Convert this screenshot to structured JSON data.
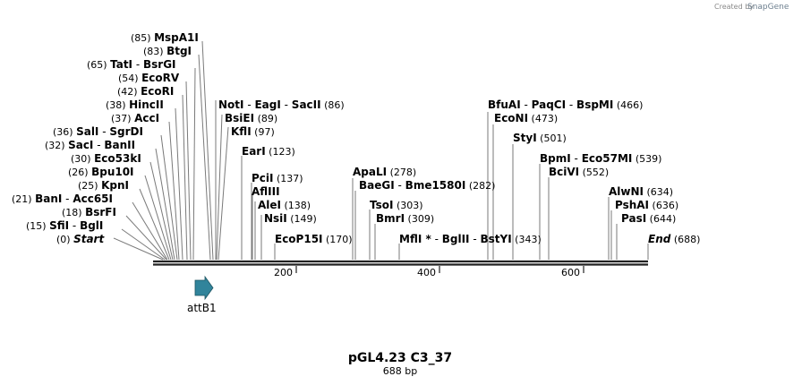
{
  "credit": {
    "prefix": "Created by",
    "brand": "SnapGene"
  },
  "plasmid": {
    "name": "pGL4.23 C3_37",
    "length": "688 bp"
  },
  "ruler": {
    "ticks": [
      "200",
      "400",
      "600"
    ]
  },
  "feature": {
    "label": "attB1",
    "color": "#31849b"
  },
  "sites": [
    {
      "pos": "(85)",
      "parts": [
        "MspA1I"
      ]
    },
    {
      "pos": "(83)",
      "parts": [
        "BtgI"
      ]
    },
    {
      "pos": "(65)",
      "parts": [
        "TatI",
        "BsrGI"
      ]
    },
    {
      "pos": "(54)",
      "parts": [
        "EcoRV"
      ]
    },
    {
      "pos": "(42)",
      "parts": [
        "EcoRI"
      ]
    },
    {
      "pos": "(38)",
      "parts": [
        "HincII"
      ]
    },
    {
      "pos": "(37)",
      "parts": [
        "AccI"
      ]
    },
    {
      "pos": "(36)",
      "parts": [
        "SalI",
        "SgrDI"
      ]
    },
    {
      "pos": "(32)",
      "parts": [
        "SacI",
        "BanII"
      ]
    },
    {
      "pos": "(30)",
      "parts": [
        "Eco53kI"
      ]
    },
    {
      "pos": "(26)",
      "parts": [
        "Bpu10I"
      ]
    },
    {
      "pos": "(25)",
      "parts": [
        "KpnI"
      ]
    },
    {
      "pos": "(21)",
      "parts": [
        "BanI",
        "Acc65I"
      ]
    },
    {
      "pos": "(18)",
      "parts": [
        "BsrFI"
      ]
    },
    {
      "pos": "(15)",
      "parts": [
        "SfiI",
        "BglI"
      ]
    },
    {
      "pos": "(0)",
      "parts": [
        "Start"
      ]
    },
    {
      "pos": "(86)",
      "parts": [
        "NotI",
        "EagI",
        "SacII"
      ]
    },
    {
      "pos": "(89)",
      "parts": [
        "BsiEI"
      ]
    },
    {
      "pos": "(97)",
      "parts": [
        "KflI"
      ]
    },
    {
      "pos": "(123)",
      "parts": [
        "EarI"
      ]
    },
    {
      "pos": "(137)",
      "parts": [
        "PciI"
      ]
    },
    {
      "pos": "",
      "parts": [
        "AflIII"
      ]
    },
    {
      "pos": "(138)",
      "parts": [
        "AleI"
      ]
    },
    {
      "pos": "(149)",
      "parts": [
        "NsiI"
      ]
    },
    {
      "pos": "(170)",
      "parts": [
        "EcoP15I"
      ]
    },
    {
      "pos": "(278)",
      "parts": [
        "ApaLI"
      ]
    },
    {
      "pos": "(282)",
      "parts": [
        "BaeGI",
        "Bme1580I"
      ]
    },
    {
      "pos": "(303)",
      "parts": [
        "TsoI"
      ]
    },
    {
      "pos": "(309)",
      "parts": [
        "BmrI"
      ]
    },
    {
      "pos": "(343)",
      "parts": [
        "MflI *",
        "BglII",
        "BstYI"
      ]
    },
    {
      "pos": "(466)",
      "parts": [
        "BfuAI",
        "PaqCI",
        "BspMI"
      ]
    },
    {
      "pos": "(473)",
      "parts": [
        "EcoNI"
      ]
    },
    {
      "pos": "(501)",
      "parts": [
        "StyI"
      ]
    },
    {
      "pos": "(539)",
      "parts": [
        "BpmI",
        "Eco57MI"
      ]
    },
    {
      "pos": "(552)",
      "parts": [
        "BciVI"
      ]
    },
    {
      "pos": "(634)",
      "parts": [
        "AlwNI"
      ]
    },
    {
      "pos": "(636)",
      "parts": [
        "PshAI"
      ]
    },
    {
      "pos": "(644)",
      "parts": [
        "PasI"
      ]
    },
    {
      "pos": "(688)",
      "parts": [
        "End"
      ]
    }
  ]
}
